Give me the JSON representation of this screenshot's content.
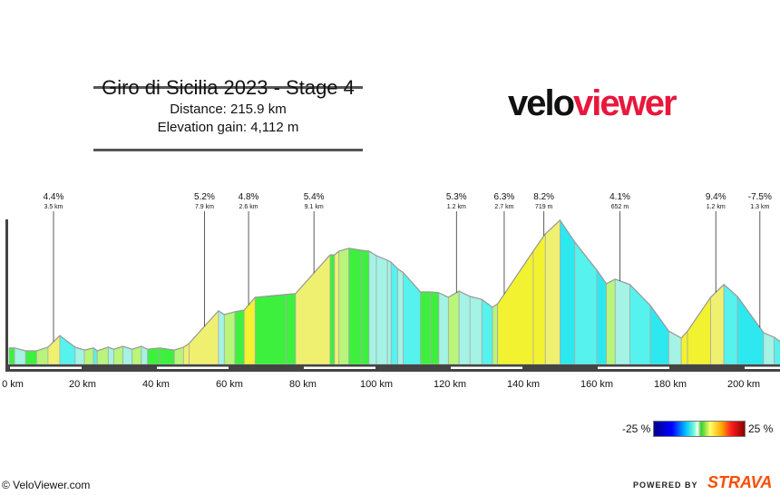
{
  "header": {
    "title": "Giro di Sicilia 2023 - Stage 4",
    "distance": "Distance: 215.9 km",
    "elevation_gain": "Elevation gain: 4,112 m"
  },
  "logo": {
    "part1": "velo",
    "part2": "viewer",
    "colors": {
      "part1": "#111111",
      "part2": "#e8173c"
    }
  },
  "chart_data": {
    "type": "area",
    "title": "Giro di Sicilia 2023 - Stage 4",
    "xlabel": "",
    "ylabel": "",
    "x_unit": "km",
    "xlim": [
      0,
      215.9
    ],
    "x_ticks": [
      "0 km",
      "20 km",
      "40 km",
      "60 km",
      "80 km",
      "100 km",
      "120 km",
      "140 km",
      "160 km",
      "180 km",
      "200 km"
    ],
    "x_tick_values": [
      0,
      20,
      40,
      60,
      80,
      100,
      120,
      140,
      160,
      180,
      200
    ],
    "grid": false,
    "profile": {
      "distance_km": [
        0,
        1.5,
        4.5,
        7.5,
        10.6,
        13.8,
        18,
        20.5,
        23,
        24,
        27,
        28.5,
        31,
        33.5,
        36,
        37.7,
        41,
        45,
        47.5,
        49,
        57,
        58.6,
        61.5,
        64,
        67,
        75.5,
        78,
        87.4,
        88.6,
        89.8,
        92.5,
        96,
        98,
        100,
        103,
        104,
        105.8,
        107.3,
        112,
        114.7,
        117,
        119.6,
        122.5,
        125.5,
        128.7,
        131.6,
        133,
        142.7,
        146,
        150,
        154,
        160,
        162.6,
        165,
        169,
        174.6,
        179.6,
        183,
        184.7,
        191,
        194.6,
        198.3,
        205.4,
        208.3,
        210,
        215.9
      ],
      "elevation_m": [
        200,
        200,
        165,
        165,
        210,
        350,
        210,
        175,
        200,
        165,
        210,
        185,
        220,
        185,
        220,
        185,
        200,
        175,
        210,
        255,
        650,
        605,
        640,
        660,
        815,
        850,
        860,
        1330,
        1330,
        1375,
        1410,
        1385,
        1375,
        1320,
        1265,
        1240,
        1160,
        1115,
        880,
        880,
        870,
        815,
        890,
        825,
        790,
        695,
        735,
        1375,
        1585,
        1750,
        1485,
        1145,
        980,
        1035,
        970,
        715,
        405,
        320,
        405,
        815,
        970,
        825,
        385,
        330,
        275,
        250
      ]
    },
    "color_scale": {
      "min_label": "-25 %",
      "max_label": "25 %",
      "min": -25,
      "max": 25
    },
    "climbs": [
      {
        "km": 12.1,
        "grade": "4.4%",
        "length": "3.5 km"
      },
      {
        "km": 53.2,
        "grade": "5.2%",
        "length": "7.9 km"
      },
      {
        "km": 65.2,
        "grade": "4.8%",
        "length": "2.6 km"
      },
      {
        "km": 83.0,
        "grade": "5.4%",
        "length": "9.1 km"
      },
      {
        "km": 121.8,
        "grade": "5.3%",
        "length": "1.2 km"
      },
      {
        "km": 134.8,
        "grade": "6.3%",
        "length": "2.7 km"
      },
      {
        "km": 145.6,
        "grade": "8.2%",
        "length": "719 m"
      },
      {
        "km": 166.3,
        "grade": "4.1%",
        "length": "652 m"
      },
      {
        "km": 192.4,
        "grade": "9.4%",
        "length": "1.2 km"
      },
      {
        "km": 204.4,
        "grade": "-7.5%",
        "length": "1.3 km"
      }
    ]
  },
  "footer": {
    "site": "© VeloViewer.com",
    "powered_by": "POWERED BY",
    "brand": "STRAVA",
    "brand_color": "#fc4c02"
  }
}
